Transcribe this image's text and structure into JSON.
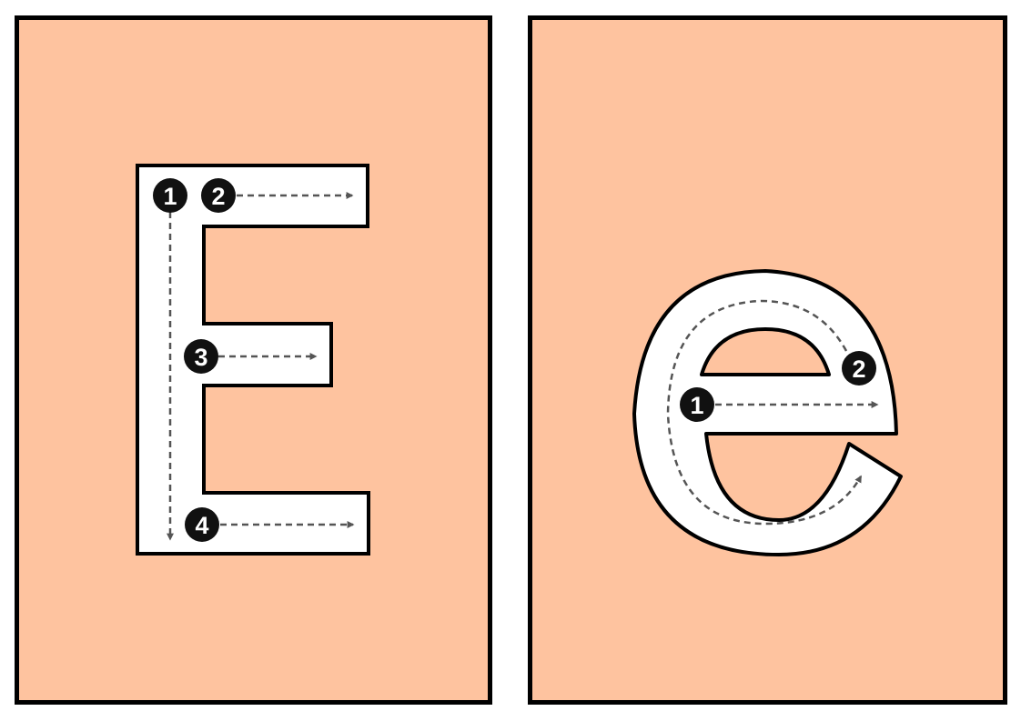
{
  "colors": {
    "card_bg": "#fec39f",
    "letter_fill": "#ffffff",
    "outline": "#000000",
    "guide": "#555555",
    "badge": "#111111"
  },
  "cards": [
    {
      "letter": "E",
      "case": "uppercase",
      "strokes": [
        "1",
        "2",
        "3",
        "4"
      ]
    },
    {
      "letter": "e",
      "case": "lowercase",
      "strokes": [
        "1",
        "2"
      ]
    }
  ]
}
